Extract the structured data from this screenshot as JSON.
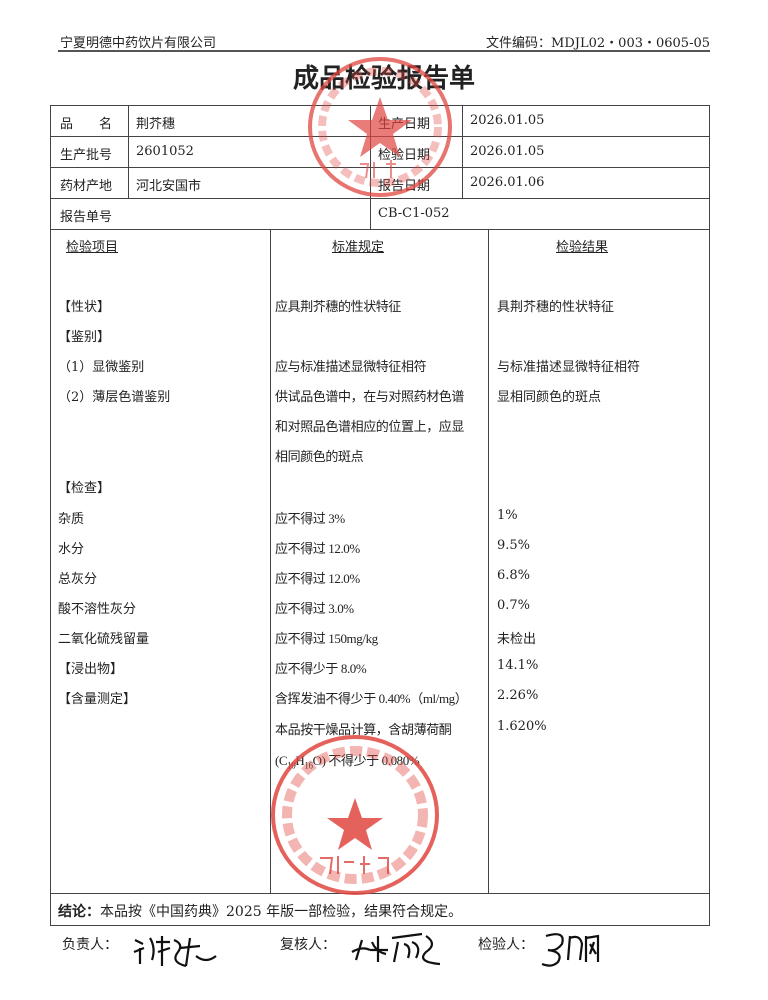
{
  "header": {
    "company": "宁夏明德中药饮片有限公司",
    "file_code": "文件编码：MDJL02・003・0605-05"
  },
  "title": "成品检验报告单",
  "info": {
    "name_label": "品　　名",
    "name": "荆芥穗",
    "batch_label": "生产批号",
    "batch": "2601052",
    "origin_label": "药材产地",
    "origin": "河北安国市",
    "report_no_label": "报告单号",
    "report_no": "CB-C1-052",
    "prod_date_label": "生产日期",
    "prod_date": "2026.01.05",
    "test_date_label": "检验日期",
    "test_date": "2026.01.05",
    "report_date_label": "报告日期",
    "report_date": "2026.01.06"
  },
  "columns": [
    "检验项目",
    "标准规定",
    "检验结果"
  ],
  "rows": [
    {
      "item": "【性状】",
      "standard": "应具荆芥穗的性状特征",
      "result": "具荆芥穗的性状特征"
    },
    {
      "item": "【鉴别】",
      "standard": "",
      "result": ""
    },
    {
      "item": "（1）显微鉴别",
      "standard": "应与标准描述显微特征相符",
      "result": "与标准描述显微特征相符"
    },
    {
      "item": "（2）薄层色谱鉴别",
      "standard": "供试品色谱中，在与对照药材色谱",
      "result": "显相同颜色的斑点"
    },
    {
      "item": "",
      "standard": "和对照品色谱相应的位置上，应显",
      "result": ""
    },
    {
      "item": "",
      "standard": "相同颜色的斑点",
      "result": ""
    },
    {
      "item": "【检查】",
      "standard": "",
      "result": ""
    },
    {
      "item": "杂质",
      "standard": "应不得过 3%",
      "result": "1%"
    },
    {
      "item": "水分",
      "standard": "应不得过 12.0%",
      "result": "9.5%"
    },
    {
      "item": "总灰分",
      "standard": "应不得过 12.0%",
      "result": "6.8%"
    },
    {
      "item": "酸不溶性灰分",
      "standard": "应不得过 3.0%",
      "result": "0.7%"
    },
    {
      "item": "二氧化硫残留量",
      "standard": "应不得过 150mg/kg",
      "result": "未检出"
    },
    {
      "item": "【浸出物】",
      "standard": "应不得少于 8.0%",
      "result": "14.1%"
    },
    {
      "item": "【含量测定】",
      "standard": "含挥发油不得少于 0.40%（ml/mg）",
      "result": "2.26%"
    },
    {
      "item": "",
      "standard": "本品按干燥品计算，含胡薄荷酮",
      "result": "1.620%"
    }
  ],
  "formula": {
    "c": "(C",
    "c_sub": "10",
    "h": "H",
    "h_sub": "16",
    "rest": "O) 不得少于 0.080%"
  },
  "conclusion": {
    "label": "结论：",
    "text": "本品按《中国药典》2025 年版一部检验，结果符合规定。"
  },
  "signatures": {
    "responsible": "负责人：",
    "reviewer": "复核人：",
    "inspector": "检验人："
  },
  "stamps": {
    "top": "宁夏明德中药饮片有限公司 质量部",
    "bottom": "宁夏明德中药饮片有限公司 质检专用章",
    "color": "#e0453f"
  }
}
